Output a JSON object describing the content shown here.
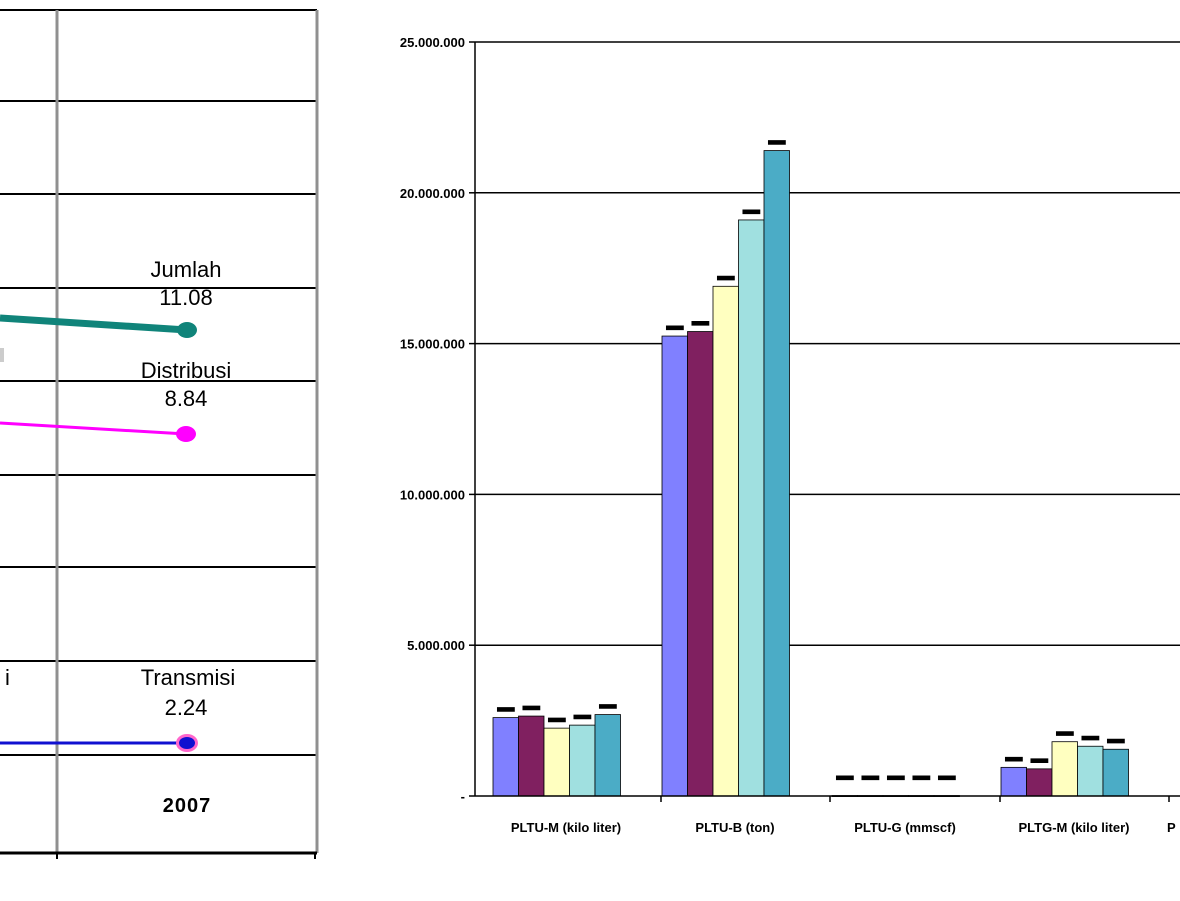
{
  "chart_data": [
    {
      "type": "line",
      "x_label": "2007",
      "grid": true,
      "series": [
        {
          "name": "Jumlah",
          "value": "11.08",
          "color": "#10847a"
        },
        {
          "name": "Distribusi",
          "value": "8.84",
          "color": "#ff00ff"
        },
        {
          "name": "Transmisi",
          "value": "2.24",
          "color": "#1010d0"
        }
      ],
      "partial_text": "i"
    },
    {
      "type": "bar",
      "yticks": [
        "25.000.000",
        "20.000.000",
        "15.000.000",
        "10.000.000",
        "5.000.000",
        "-"
      ],
      "ylim": [
        0,
        25000000
      ],
      "grid": true,
      "categories": [
        "PLTU-M (kilo liter)",
        "PLTU-B (ton)",
        "PLTU-G (mmscf)",
        "PLTG-M (kilo liter)",
        "P"
      ],
      "series_colors": [
        "#8080ff",
        "#802060",
        "#ffffc0",
        "#a0e0e0",
        "#4bacc6"
      ],
      "values": [
        [
          2600000,
          2650000,
          2250000,
          2350000,
          2700000
        ],
        [
          15250000,
          15400000,
          16900000,
          19100000,
          21400000
        ],
        [
          15000,
          15000,
          15000,
          15000,
          15000
        ],
        [
          950000,
          900000,
          1800000,
          1650000,
          1550000
        ],
        [
          null,
          null,
          null,
          null,
          null
        ]
      ]
    }
  ]
}
